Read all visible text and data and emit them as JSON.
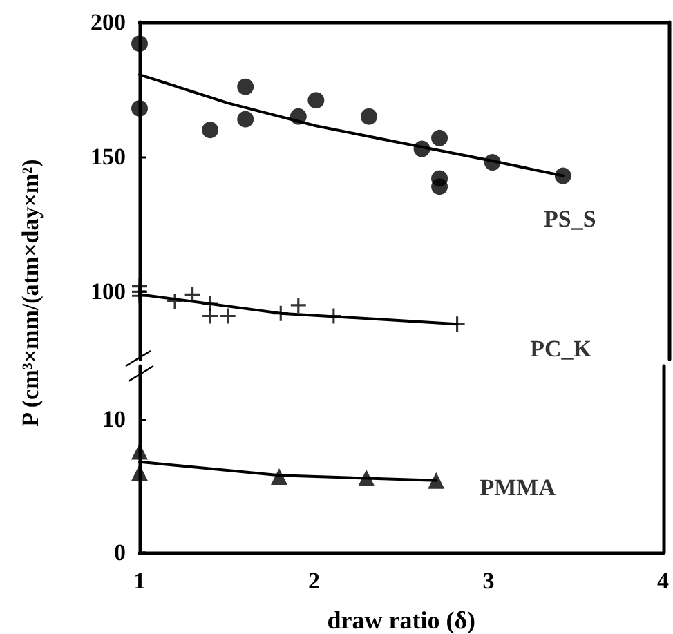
{
  "chart_data": [
    {
      "type": "scatter",
      "ylabel": "P (cm³×mm/(atm×day×m²)",
      "xlim": [
        1,
        4
      ],
      "xticks": [
        1,
        2,
        3,
        4
      ],
      "ylim": [
        75,
        200
      ],
      "yticks": [
        100,
        150,
        200
      ],
      "tick_labels": "y",
      "series": [
        {
          "name": "PS_S",
          "color": "#000000",
          "marker": "circle",
          "x": [
            1,
            1,
            1.4,
            1.6,
            1.6,
            1.9,
            2,
            2.3,
            2.6,
            2.7,
            2.7,
            2.7,
            3,
            3.4
          ],
          "values": [
            192,
            168,
            160,
            176,
            164,
            165,
            171,
            165,
            153,
            157,
            142,
            139,
            148,
            143
          ]
        },
        {
          "type": "line",
          "color": "#000000",
          "marker": "none",
          "line_style": "solid",
          "x": [
            1,
            1.5,
            2,
            2.5,
            3,
            3.4
          ],
          "values": [
            180.5,
            170,
            161.5,
            155,
            148.5,
            143
          ]
        },
        {
          "name": "PC_K",
          "color": "#000000",
          "marker": "cross",
          "x": [
            1,
            1,
            1,
            1.2,
            1.3,
            1.4,
            1.4,
            1.5,
            1.8,
            1.9,
            2.1,
            2.8
          ],
          "values": [
            102,
            100,
            98.5,
            96.5,
            99,
            95.5,
            91,
            91,
            92,
            95,
            91,
            88
          ]
        },
        {
          "type": "line",
          "color": "#000000",
          "marker": "none",
          "line_style": "solid",
          "x": [
            1,
            1.8,
            2.8
          ],
          "values": [
            99,
            92,
            88
          ]
        }
      ]
    },
    {
      "type": "scatter",
      "xlabel": "draw ratio (δ)",
      "xlim": [
        1,
        4
      ],
      "xticks": [
        1,
        2,
        3,
        4
      ],
      "ylim": [
        0,
        14
      ],
      "yticks": [
        0,
        10
      ],
      "series": [
        {
          "name": "PMMA",
          "color": "#000000",
          "marker": "triangle",
          "x": [
            1,
            1,
            1.8,
            2.3,
            2.7
          ],
          "values": [
            7.6,
            6,
            5.7,
            5.6,
            5.4
          ]
        },
        {
          "type": "line",
          "color": "#000000",
          "marker": "none",
          "line_style": "solid",
          "x": [
            1,
            1.8,
            2.7
          ],
          "values": [
            6.8,
            5.8,
            5.4
          ]
        }
      ]
    }
  ]
}
